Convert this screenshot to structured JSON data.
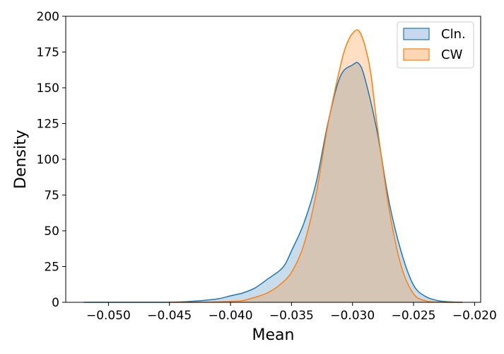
{
  "chart_data": {
    "type": "area",
    "title": "",
    "xlabel": "Mean",
    "ylabel": "Density",
    "xlim": [
      -0.0535,
      -0.0195
    ],
    "ylim": [
      0,
      200
    ],
    "xticks": [
      -0.05,
      -0.045,
      -0.04,
      -0.035,
      -0.03,
      -0.025,
      -0.02
    ],
    "xtick_labels": [
      "−0.050",
      "−0.045",
      "−0.040",
      "−0.035",
      "−0.030",
      "−0.025",
      "−0.020"
    ],
    "yticks": [
      0,
      25,
      50,
      75,
      100,
      125,
      150,
      175,
      200
    ],
    "ytick_labels": [
      "0",
      "25",
      "50",
      "75",
      "100",
      "125",
      "150",
      "175",
      "200"
    ],
    "grid": false,
    "legend_position": "top-right",
    "series": [
      {
        "name": "Cln.",
        "color": "#1f77b4",
        "fill_color": "#c7d9ec",
        "x": [
          -0.052,
          -0.05,
          -0.048,
          -0.046,
          -0.044,
          -0.043,
          -0.042,
          -0.041,
          -0.04,
          -0.0395,
          -0.039,
          -0.038,
          -0.037,
          -0.036,
          -0.0355,
          -0.035,
          -0.034,
          -0.033,
          -0.032,
          -0.031,
          -0.03,
          -0.0295,
          -0.029,
          -0.028,
          -0.027,
          -0.026,
          -0.025,
          -0.024,
          -0.023,
          -0.022,
          -0.021
        ],
        "y": [
          0,
          0,
          0,
          0,
          0.3,
          0.8,
          1.5,
          2.5,
          4.5,
          5.5,
          6.5,
          10,
          16,
          22,
          27,
          36,
          55,
          83,
          126,
          158,
          166,
          167,
          157,
          120,
          70,
          35,
          12,
          4,
          1.2,
          0.3,
          0
        ]
      },
      {
        "name": "CW",
        "color": "#ff7f0e",
        "fill_color": "#fdd7b5",
        "x": [
          -0.045,
          -0.044,
          -0.043,
          -0.042,
          -0.041,
          -0.04,
          -0.039,
          -0.038,
          -0.037,
          -0.036,
          -0.035,
          -0.034,
          -0.033,
          -0.032,
          -0.031,
          -0.0305,
          -0.03,
          -0.0295,
          -0.029,
          -0.0285,
          -0.028,
          -0.027,
          -0.026,
          -0.025,
          -0.024,
          -0.023,
          -0.022,
          -0.021
        ],
        "y": [
          0,
          0,
          0,
          0.1,
          0.3,
          0.6,
          1.2,
          3.5,
          6.5,
          12,
          21,
          40,
          75,
          125,
          165,
          180,
          188,
          190,
          180,
          160,
          125,
          65,
          25,
          6,
          1,
          0.2,
          0,
          0
        ]
      }
    ]
  }
}
